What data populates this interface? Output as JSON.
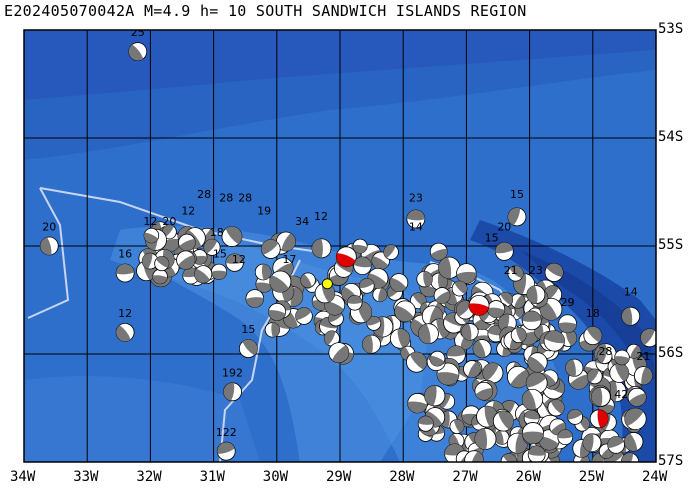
{
  "title": "E202405070042A M=4.9 h= 10 SOUTH SANDWICH ISLANDS REGION",
  "lat_labels": [
    "53S",
    "54S",
    "55S",
    "56S",
    "57S"
  ],
  "lon_labels": [
    "34W",
    "33W",
    "32W",
    "31W",
    "30W",
    "29W",
    "28W",
    "27W",
    "26W",
    "25W",
    "24W"
  ],
  "colors": {
    "ocean_deep": "#1f55b8",
    "ocean_mid": "#2f6fcc",
    "ocean_shallow": "#4b8fe0",
    "grid": "#000000",
    "plate_boundary": "#c8d4f0",
    "event_highlight": "#ffff00",
    "beachball_dark": "#777777",
    "beachball_highlight": "#e00000"
  },
  "epicenter": {
    "lon": -29.2,
    "lat": -55.35
  },
  "mechanism_labels": [
    {
      "text": "25",
      "lon": -32.2,
      "lat": -53.15
    },
    {
      "text": "20",
      "lon": -33.6,
      "lat": -54.95
    },
    {
      "text": "16",
      "lon": -32.4,
      "lat": -55.2
    },
    {
      "text": "12",
      "lon": -32.4,
      "lat": -55.75
    },
    {
      "text": "12",
      "lon": -32.0,
      "lat": -54.9
    },
    {
      "text": "20",
      "lon": -31.7,
      "lat": -54.9
    },
    {
      "text": "12",
      "lon": -31.4,
      "lat": -54.8
    },
    {
      "text": "28",
      "lon": -31.15,
      "lat": -54.65
    },
    {
      "text": "28",
      "lon": -30.8,
      "lat": -54.68
    },
    {
      "text": "28",
      "lon": -30.5,
      "lat": -54.68
    },
    {
      "text": "19",
      "lon": -30.2,
      "lat": -54.8
    },
    {
      "text": "18",
      "lon": -30.95,
      "lat": -55.0
    },
    {
      "text": "15",
      "lon": -30.9,
      "lat": -55.2
    },
    {
      "text": "12",
      "lon": -30.6,
      "lat": -55.25
    },
    {
      "text": "15",
      "lon": -30.45,
      "lat": -55.9
    },
    {
      "text": "192",
      "lon": -30.7,
      "lat": -56.3
    },
    {
      "text": "122",
      "lon": -30.8,
      "lat": -56.85
    },
    {
      "text": "34",
      "lon": -29.6,
      "lat": -54.9
    },
    {
      "text": "12",
      "lon": -29.3,
      "lat": -54.85
    },
    {
      "text": "17",
      "lon": -29.8,
      "lat": -55.25
    },
    {
      "text": "23",
      "lon": -27.8,
      "lat": -54.68
    },
    {
      "text": "14",
      "lon": -27.8,
      "lat": -54.95
    },
    {
      "text": "15",
      "lon": -26.2,
      "lat": -54.65
    },
    {
      "text": "20",
      "lon": -26.4,
      "lat": -54.95
    },
    {
      "text": "15",
      "lon": -26.6,
      "lat": -55.05
    },
    {
      "text": "23",
      "lon": -25.9,
      "lat": -55.35
    },
    {
      "text": "21",
      "lon": -26.3,
      "lat": -55.35
    },
    {
      "text": "29",
      "lon": -25.4,
      "lat": -55.65
    },
    {
      "text": "18",
      "lon": -25.0,
      "lat": -55.75
    },
    {
      "text": "14",
      "lon": -24.4,
      "lat": -55.55
    },
    {
      "text": "21",
      "lon": -24.2,
      "lat": -56.15
    },
    {
      "text": "28",
      "lon": -24.8,
      "lat": -56.1
    },
    {
      "text": "42",
      "lon": -24.55,
      "lat": -56.5
    }
  ]
}
